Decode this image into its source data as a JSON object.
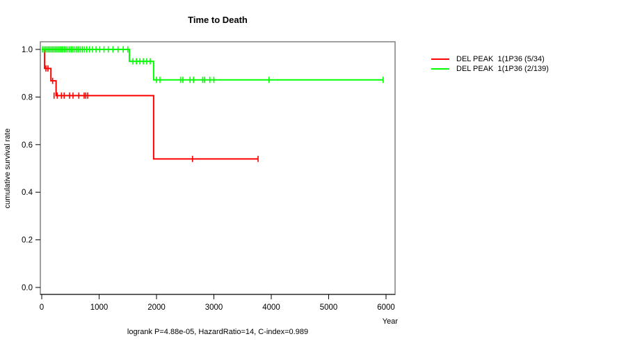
{
  "chart_data": {
    "type": "line",
    "subtype": "kaplan-meier-step",
    "title": "Time to Death",
    "xlabel": "Year",
    "ylabel": "cumulative survival rate",
    "annotation": "logrank P=4.88e-05, HazardRatio=14, C-index=0.989",
    "xlim": [
      0,
      6000
    ],
    "ylim": [
      0.0,
      1.0
    ],
    "xticks": [
      0,
      1000,
      2000,
      3000,
      4000,
      5000,
      6000
    ],
    "ytick_labels": [
      "0.0",
      "0.2",
      "0.4",
      "0.6",
      "0.8",
      "1.0"
    ],
    "grid": false,
    "legend_position": "right-outside",
    "box_color": "#808080",
    "series": [
      {
        "name": "DEL PEAK  1(1P36 (5/34)",
        "color": "#ff0000",
        "steps": [
          [
            0,
            1.0
          ],
          [
            50,
            0.92
          ],
          [
            160,
            0.868
          ],
          [
            250,
            0.806
          ],
          [
            1950,
            0.54
          ]
        ],
        "end_time": 3770,
        "censors": [
          [
            73,
            0.92
          ],
          [
            109,
            0.92
          ],
          [
            190,
            0.868
          ],
          [
            215,
            0.806
          ],
          [
            270,
            0.806
          ],
          [
            343,
            0.806
          ],
          [
            391,
            0.806
          ],
          [
            485,
            0.806
          ],
          [
            545,
            0.806
          ],
          [
            646,
            0.806
          ],
          [
            739,
            0.806
          ],
          [
            767,
            0.806
          ],
          [
            800,
            0.806
          ],
          [
            2627,
            0.54
          ],
          [
            3770,
            0.54
          ]
        ]
      },
      {
        "name": "DEL PEAK  1(1P36 (2/139)",
        "color": "#00ff00",
        "steps": [
          [
            0,
            1.0
          ],
          [
            1527,
            0.95
          ],
          [
            1950,
            0.872
          ]
        ],
        "end_time": 5950,
        "censors": [
          [
            15,
            1.0
          ],
          [
            40,
            1.0
          ],
          [
            65,
            1.0
          ],
          [
            90,
            1.0
          ],
          [
            115,
            1.0
          ],
          [
            140,
            1.0
          ],
          [
            165,
            1.0
          ],
          [
            190,
            1.0
          ],
          [
            215,
            1.0
          ],
          [
            240,
            1.0
          ],
          [
            265,
            1.0
          ],
          [
            290,
            1.0
          ],
          [
            315,
            1.0
          ],
          [
            340,
            1.0
          ],
          [
            365,
            1.0
          ],
          [
            395,
            1.0
          ],
          [
            425,
            1.0
          ],
          [
            455,
            1.0
          ],
          [
            485,
            1.0
          ],
          [
            515,
            1.0
          ],
          [
            545,
            1.0
          ],
          [
            575,
            1.0
          ],
          [
            605,
            1.0
          ],
          [
            635,
            1.0
          ],
          [
            670,
            1.0
          ],
          [
            705,
            1.0
          ],
          [
            745,
            1.0
          ],
          [
            785,
            1.0
          ],
          [
            830,
            1.0
          ],
          [
            885,
            1.0
          ],
          [
            945,
            1.0
          ],
          [
            1010,
            1.0
          ],
          [
            1085,
            1.0
          ],
          [
            1160,
            1.0
          ],
          [
            1240,
            1.0
          ],
          [
            1330,
            1.0
          ],
          [
            1420,
            1.0
          ],
          [
            1500,
            1.0
          ],
          [
            1590,
            0.95
          ],
          [
            1650,
            0.95
          ],
          [
            1710,
            0.95
          ],
          [
            1770,
            0.95
          ],
          [
            1830,
            0.95
          ],
          [
            1890,
            0.95
          ],
          [
            2000,
            0.872
          ],
          [
            2060,
            0.872
          ],
          [
            2420,
            0.872
          ],
          [
            2460,
            0.872
          ],
          [
            2585,
            0.872
          ],
          [
            2645,
            0.872
          ],
          [
            2805,
            0.872
          ],
          [
            2835,
            0.872
          ],
          [
            2930,
            0.872
          ],
          [
            3000,
            0.872
          ],
          [
            3960,
            0.872
          ],
          [
            5950,
            0.872
          ]
        ]
      }
    ]
  }
}
